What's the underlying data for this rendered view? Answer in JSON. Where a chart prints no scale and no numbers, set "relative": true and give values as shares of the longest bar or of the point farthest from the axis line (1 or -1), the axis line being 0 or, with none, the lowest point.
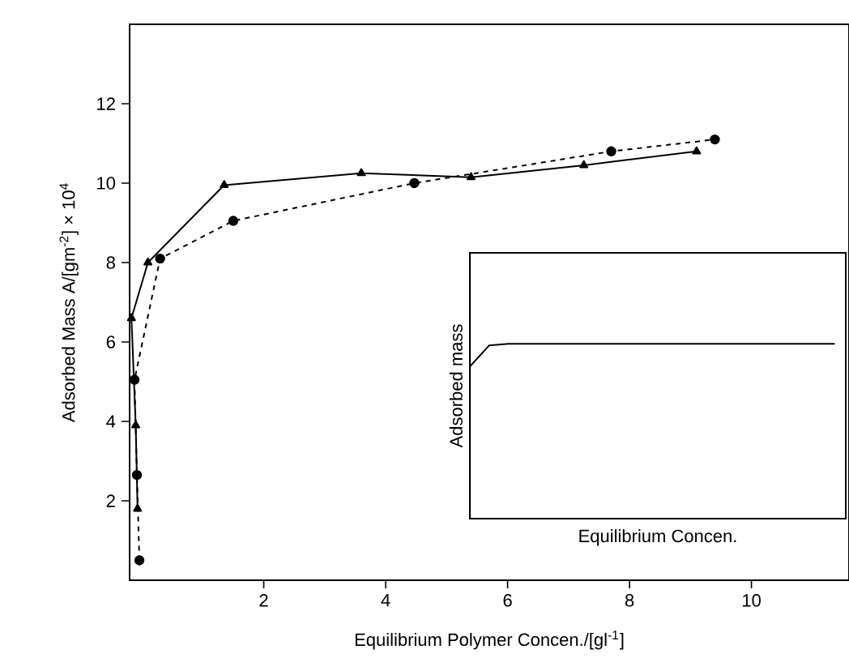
{
  "chart_data": [
    {
      "type": "line",
      "xlabel": "Equilibrium Polymer Concen./[gl$^{-1}$]",
      "ylabel": "Adsorbed Mass A/[gm$^{-2}$] × 10$^{4}$",
      "xlim": [
        -0.2,
        11.6
      ],
      "ylim": [
        0,
        14
      ],
      "xticks": [
        2,
        4,
        6,
        8,
        10
      ],
      "yticks": [
        2,
        4,
        6,
        8,
        10,
        12
      ],
      "series": [
        {
          "color": "#000000",
          "marker": "triangle",
          "line_style": "solid",
          "x": [
            -0.07,
            -0.1,
            -0.17,
            0.1,
            1.35,
            3.6,
            5.4,
            7.25,
            9.1
          ],
          "values": [
            1.8,
            3.9,
            6.6,
            8.0,
            9.95,
            10.25,
            10.15,
            10.45,
            10.8
          ]
        },
        {
          "color": "#000000",
          "marker": "circle",
          "line_style": "dashed",
          "x": [
            -0.04,
            -0.08,
            -0.12,
            0.3,
            1.5,
            4.47,
            7.7,
            9.4
          ],
          "values": [
            0.5,
            2.65,
            5.05,
            8.1,
            9.05,
            10.0,
            10.8,
            11.1
          ]
        }
      ]
    },
    {
      "type": "line",
      "relative": true,
      "xlabel": "Equilibrium Concen.",
      "ylabel": "Adsorbed mass",
      "categories": [
        null,
        null,
        null,
        null,
        null,
        null,
        null,
        null,
        null,
        null,
        null,
        null,
        null,
        null,
        null,
        null,
        null,
        null,
        null,
        null
      ],
      "series": [
        {
          "color": "#000000",
          "values": [
            0.87,
            0.99,
            1,
            1,
            1,
            1,
            1,
            1,
            1,
            1,
            1,
            1,
            1,
            1,
            1,
            1,
            1,
            1,
            1,
            1
          ]
        }
      ]
    }
  ]
}
